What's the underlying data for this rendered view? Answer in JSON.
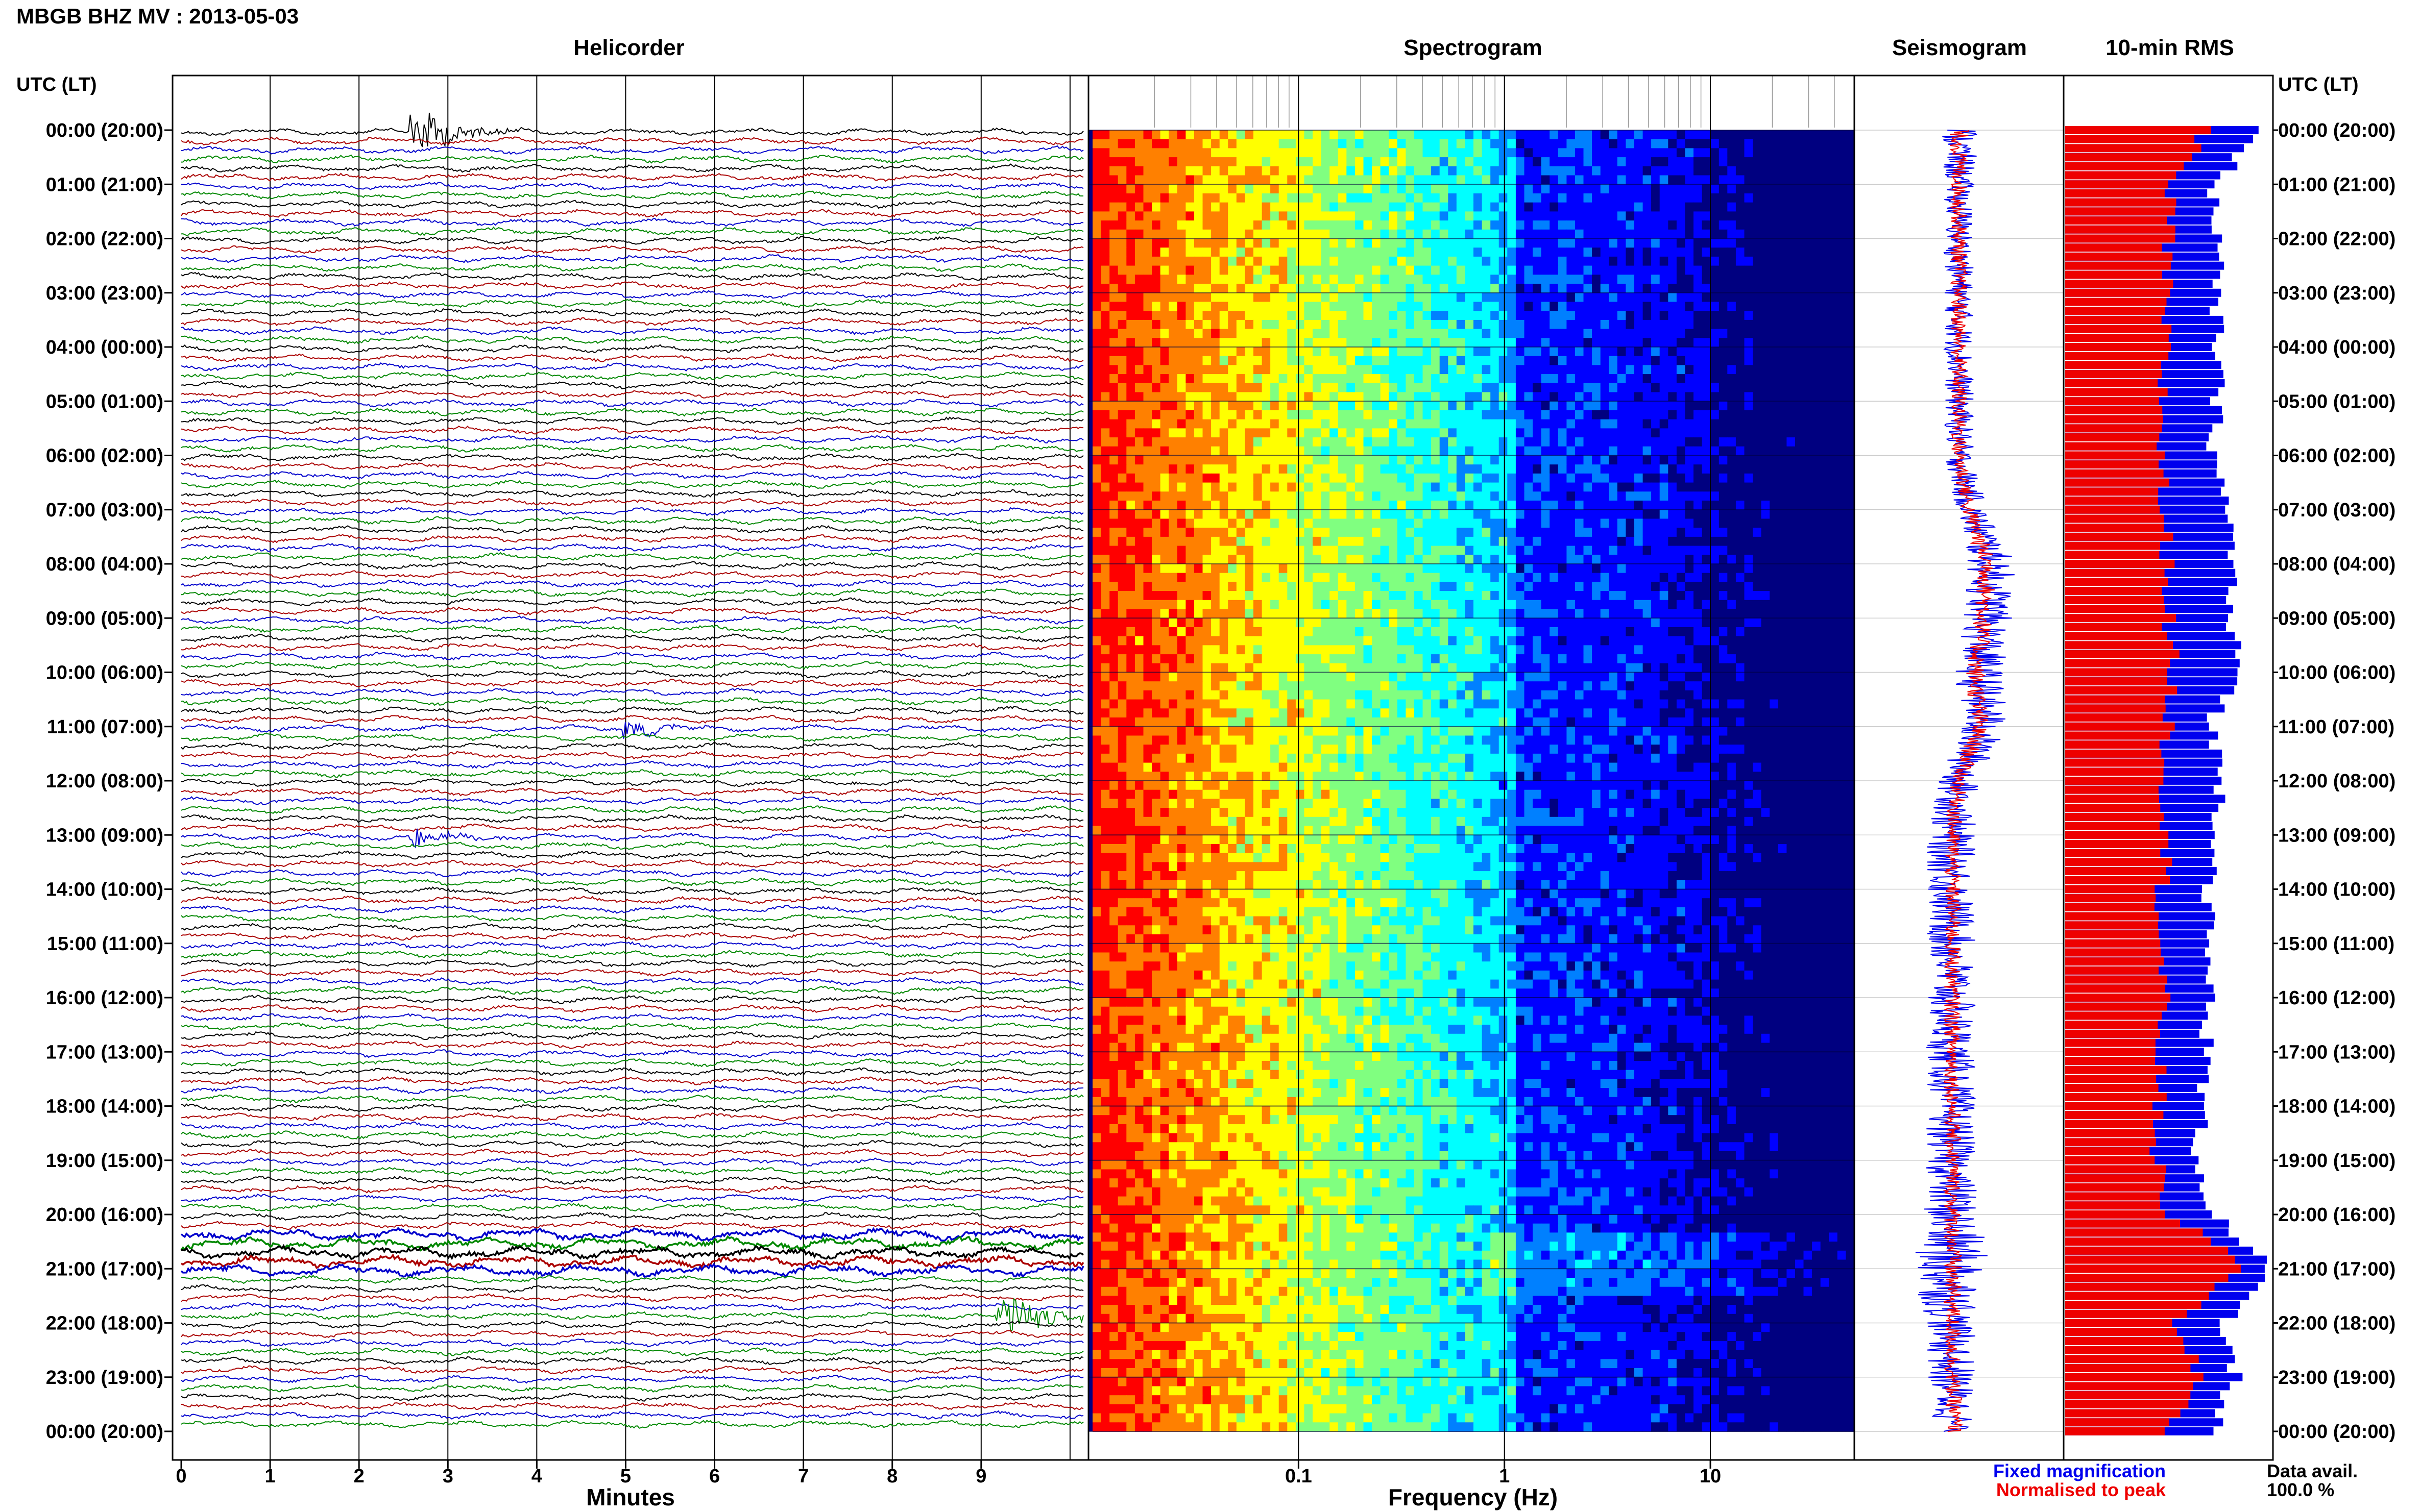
{
  "header": {
    "station_title": "MBGB BHZ MV : 2013-05-03",
    "utc_label_left": "UTC (LT)",
    "utc_label_right": "UTC (LT)"
  },
  "panels": {
    "helicorder": {
      "title": "Helicorder",
      "xlabel": "Minutes"
    },
    "spectrogram": {
      "title": "Spectrogram",
      "xlabel": "Frequency (Hz)"
    },
    "seismogram": {
      "title": "Seismogram"
    },
    "rms": {
      "title": "10-min RMS"
    }
  },
  "legend": {
    "fixed": "Fixed magnification",
    "normalised": "Normalised to peak",
    "fixed_color": "#0000ee",
    "normalised_color": "#ee0000"
  },
  "data_avail": {
    "label": "Data avail.",
    "value": "100.0 %"
  },
  "time_labels": [
    "00:00 (20:00)",
    "01:00 (21:00)",
    "02:00 (22:00)",
    "03:00 (23:00)",
    "04:00 (00:00)",
    "05:00 (01:00)",
    "06:00 (02:00)",
    "07:00 (03:00)",
    "08:00 (04:00)",
    "09:00 (05:00)",
    "10:00 (06:00)",
    "11:00 (07:00)",
    "12:00 (08:00)",
    "13:00 (09:00)",
    "14:00 (10:00)",
    "15:00 (11:00)",
    "16:00 (12:00)",
    "17:00 (13:00)",
    "18:00 (14:00)",
    "19:00 (15:00)",
    "20:00 (16:00)",
    "21:00 (17:00)",
    "22:00 (18:00)",
    "23:00 (19:00)",
    "00:00 (20:00)"
  ],
  "chart_data": [
    {
      "type": "line",
      "name": "helicorder",
      "title": "Helicorder",
      "xlabel": "Minutes",
      "x_ticks": [
        "0",
        "1",
        "2",
        "3",
        "4",
        "5",
        "6",
        "7",
        "8",
        "9"
      ],
      "xlim": [
        0,
        10
      ],
      "rows": 144,
      "row_minutes": 10,
      "trace_colors": [
        "#000000",
        "#aa0000",
        "#0000cc",
        "#008800"
      ],
      "events": [
        {
          "row": 0,
          "minute": 2.6,
          "strength": 1.0,
          "color": "#000000"
        },
        {
          "row": 66,
          "minute": 5.0,
          "strength": 0.35,
          "color": "#0000cc"
        },
        {
          "row": 78,
          "minute": 2.6,
          "strength": 0.45,
          "color": "#0000cc"
        },
        {
          "row": 131,
          "minute": 9.2,
          "strength": 1.0,
          "color": "#008800"
        }
      ],
      "noisy_rows": [
        122,
        123,
        124,
        125,
        126
      ],
      "grid": true
    },
    {
      "type": "heatmap",
      "name": "spectrogram",
      "title": "Spectrogram",
      "xlabel": "Frequency (Hz)",
      "x_scale": "log",
      "x_ticks": [
        "0.1",
        "1",
        "10"
      ],
      "xlim": [
        0.01,
        50
      ],
      "colormap": [
        "#000080",
        "#0000ff",
        "#0080ff",
        "#00ffff",
        "#80ff80",
        "#ffff00",
        "#ff8000",
        "#ff0000"
      ],
      "grid": true
    },
    {
      "type": "line",
      "name": "seismogram",
      "title": "Seismogram",
      "series": [
        {
          "name": "Fixed magnification",
          "color": "#0000ee",
          "offset": [
            0,
            0,
            0,
            0,
            0,
            0,
            0,
            0.15,
            0.4,
            0.35,
            0.25,
            0.3,
            0.0,
            -0.1,
            -0.1,
            -0.1,
            -0.1,
            -0.1,
            -0.1,
            -0.1,
            -0.1,
            -0.1,
            -0.1,
            -0.1,
            -0.05
          ],
          "width": [
            0.25,
            0.18,
            0.18,
            0.18,
            0.18,
            0.18,
            0.18,
            0.2,
            0.3,
            0.3,
            0.3,
            0.3,
            0.25,
            0.3,
            0.3,
            0.3,
            0.3,
            0.3,
            0.3,
            0.3,
            0.35,
            0.5,
            0.3,
            0.3,
            0.25
          ]
        },
        {
          "name": "Normalised to peak",
          "color": "#ee0000",
          "offset": [
            0,
            0,
            0,
            0,
            0,
            0,
            0,
            0.12,
            0.35,
            0.3,
            0.2,
            0.25,
            0.0,
            -0.08,
            -0.08,
            -0.08,
            -0.08,
            -0.08,
            -0.08,
            -0.08,
            -0.08,
            -0.08,
            -0.08,
            -0.08,
            -0.05
          ],
          "width": [
            0.12,
            0.1,
            0.1,
            0.1,
            0.1,
            0.1,
            0.1,
            0.1,
            0.12,
            0.12,
            0.12,
            0.12,
            0.1,
            0.1,
            0.1,
            0.1,
            0.1,
            0.1,
            0.1,
            0.1,
            0.1,
            0.12,
            0.1,
            0.1,
            0.1
          ]
        }
      ]
    },
    {
      "type": "bar",
      "name": "rms",
      "title": "10-min RMS",
      "orientation": "horizontal",
      "bars_per_hour": 6,
      "series": [
        {
          "name": "Fixed magnification",
          "color": "#0000ee",
          "hourly": [
            0.95,
            0.72,
            0.74,
            0.72,
            0.74,
            0.73,
            0.72,
            0.78,
            0.82,
            0.78,
            0.85,
            0.7,
            0.76,
            0.74,
            0.7,
            0.68,
            0.7,
            0.68,
            0.66,
            0.64,
            0.72,
            0.98,
            0.76,
            0.82,
            0.72
          ]
        },
        {
          "name": "Normalised to peak",
          "color": "#ee0000",
          "hourly": [
            0.68,
            0.5,
            0.5,
            0.48,
            0.48,
            0.47,
            0.47,
            0.47,
            0.5,
            0.5,
            0.52,
            0.5,
            0.48,
            0.5,
            0.47,
            0.46,
            0.47,
            0.46,
            0.45,
            0.44,
            0.5,
            0.88,
            0.5,
            0.66,
            0.5
          ]
        }
      ]
    }
  ]
}
